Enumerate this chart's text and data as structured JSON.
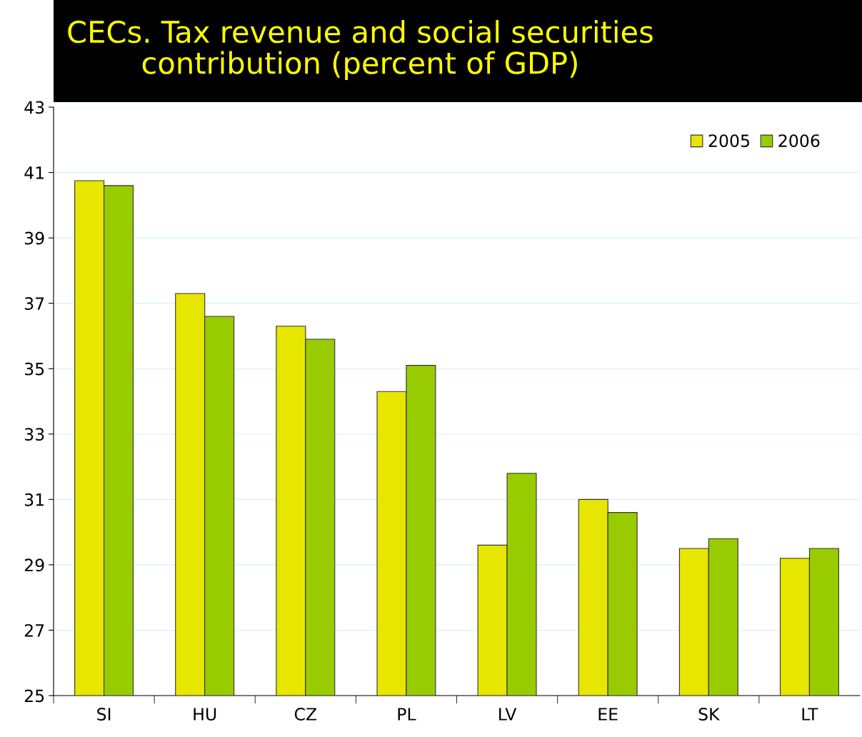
{
  "chart_data": {
    "type": "bar",
    "title": "CECs. Tax revenue and social securities\ncontribution (percent of GDP)",
    "categories": [
      "SI",
      "HU",
      "CZ",
      "PL",
      "LV",
      "EE",
      "SK",
      "LT"
    ],
    "series": [
      {
        "name": "2005",
        "color": "#e6e600",
        "values": [
          40.75,
          37.3,
          36.3,
          34.3,
          29.6,
          31.0,
          29.5,
          29.2
        ]
      },
      {
        "name": "2006",
        "color": "#99cc00",
        "values": [
          40.6,
          36.6,
          35.9,
          35.1,
          31.8,
          30.6,
          29.8,
          29.5
        ]
      }
    ],
    "ylim": [
      25,
      43
    ],
    "yticks": [
      25,
      27,
      29,
      31,
      33,
      35,
      37,
      39,
      41,
      43
    ],
    "grid": "y",
    "legend": "top right"
  }
}
